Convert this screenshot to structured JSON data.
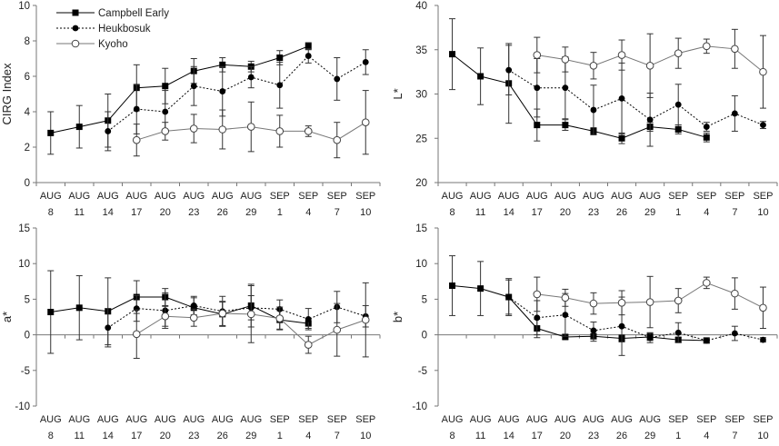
{
  "legend": {
    "entries": [
      {
        "label": "Campbell Early",
        "series": "campbell"
      },
      {
        "label": "Heukbosuk",
        "series": "heukbosuk"
      },
      {
        "label": "Kyoho",
        "series": "kyoho"
      }
    ]
  },
  "chart_data": [
    {
      "type": "line",
      "panel": "top-left",
      "ylabel": "CIRG Index",
      "ylim": [
        0,
        10
      ],
      "yticks": [
        0,
        2,
        4,
        6,
        8,
        10
      ],
      "months": [
        "AUG",
        "AUG",
        "AUG",
        "AUG",
        "AUG",
        "AUG",
        "AUG",
        "AUG",
        "SEP",
        "SEP",
        "SEP",
        "SEP"
      ],
      "days": [
        "8",
        "11",
        "14",
        "17",
        "20",
        "23",
        "26",
        "29",
        "1",
        "4",
        "7",
        "10"
      ],
      "legend_position": "top-left",
      "series": [
        {
          "name": "Campbell Early",
          "values": [
            2.8,
            3.15,
            3.5,
            5.35,
            5.45,
            6.3,
            6.65,
            6.55,
            7.05,
            7.7,
            null,
            null
          ],
          "errors": [
            1.2,
            1.2,
            1.5,
            1.3,
            1.0,
            0.7,
            0.4,
            0.3,
            0.4,
            0.2,
            null,
            null
          ]
        },
        {
          "name": "Heukbosuk",
          "values": [
            null,
            null,
            2.9,
            4.15,
            4.0,
            5.45,
            5.15,
            5.95,
            5.5,
            7.15,
            5.85,
            6.8
          ],
          "errors": [
            null,
            null,
            1.1,
            1.4,
            1.2,
            1.1,
            1.4,
            0.6,
            1.3,
            0.4,
            1.2,
            0.7
          ]
        },
        {
          "name": "Kyoho",
          "values": [
            null,
            null,
            null,
            2.4,
            2.9,
            3.05,
            3.0,
            3.15,
            2.9,
            2.9,
            2.4,
            3.4
          ],
          "errors": [
            null,
            null,
            null,
            0.9,
            0.5,
            0.8,
            1.1,
            1.4,
            0.9,
            0.3,
            1.0,
            1.8
          ]
        }
      ]
    },
    {
      "type": "line",
      "panel": "top-right",
      "ylabel": "L*",
      "ylim": [
        20,
        40
      ],
      "yticks": [
        20,
        25,
        30,
        35,
        40
      ],
      "months": [
        "AUG",
        "AUG",
        "AUG",
        "AUG",
        "AUG",
        "AUG",
        "AUG",
        "AUG",
        "SEP",
        "SEP",
        "SEP",
        "SEP"
      ],
      "days": [
        "8",
        "11",
        "14",
        "17",
        "20",
        "23",
        "26",
        "29",
        "1",
        "4",
        "7",
        "10"
      ],
      "series": [
        {
          "name": "Campbell Early",
          "values": [
            34.5,
            32.0,
            31.2,
            26.5,
            26.5,
            25.8,
            25.0,
            26.3,
            26.0,
            25.1,
            null,
            null
          ],
          "errors": [
            4.0,
            3.2,
            4.5,
            1.8,
            0.6,
            0.4,
            0.6,
            0.5,
            0.5,
            0.5,
            null,
            null
          ]
        },
        {
          "name": "Heukbosuk",
          "values": [
            null,
            null,
            32.7,
            30.7,
            30.7,
            28.2,
            29.5,
            27.1,
            28.8,
            26.3,
            27.8,
            26.5
          ],
          "errors": [
            null,
            null,
            2.8,
            3.3,
            3.5,
            2.8,
            4.0,
            3.0,
            2.3,
            0.5,
            2.0,
            0.4
          ]
        },
        {
          "name": "Kyoho",
          "values": [
            null,
            null,
            null,
            34.4,
            33.9,
            33.2,
            34.4,
            33.2,
            34.6,
            35.4,
            35.1,
            32.5
          ],
          "errors": [
            null,
            null,
            null,
            2.0,
            1.4,
            1.5,
            1.7,
            3.6,
            1.7,
            0.8,
            2.2,
            4.1
          ]
        }
      ]
    },
    {
      "type": "line",
      "panel": "bottom-left",
      "ylabel": "a*",
      "ylim": [
        -10,
        15
      ],
      "yticks": [
        -10,
        -5,
        0,
        5,
        10,
        15
      ],
      "months": [
        "AUG",
        "AUG",
        "AUG",
        "AUG",
        "AUG",
        "AUG",
        "AUG",
        "AUG",
        "SEP",
        "SEP",
        "SEP",
        "SEP"
      ],
      "days": [
        "8",
        "11",
        "14",
        "17",
        "20",
        "23",
        "26",
        "29",
        "1",
        "4",
        "7",
        "10"
      ],
      "series": [
        {
          "name": "Campbell Early",
          "values": [
            3.2,
            3.8,
            3.3,
            5.3,
            5.3,
            3.8,
            2.9,
            4.1,
            2.1,
            1.6,
            null,
            null
          ],
          "errors": [
            5.8,
            4.5,
            4.7,
            2.3,
            1.2,
            1.4,
            1.7,
            3.0,
            1.3,
            0.7,
            null,
            null
          ]
        },
        {
          "name": "Heukbosuk",
          "values": [
            null,
            null,
            1.0,
            3.7,
            3.4,
            4.1,
            3.3,
            3.8,
            3.6,
            2.2,
            3.9,
            2.6
          ],
          "errors": [
            null,
            null,
            2.7,
            1.8,
            2.5,
            1.3,
            2.1,
            1.7,
            1.3,
            1.5,
            2.2,
            1.5
          ]
        },
        {
          "name": "Kyoho",
          "values": [
            null,
            null,
            null,
            0.1,
            2.6,
            2.4,
            3.0,
            2.9,
            2.3,
            -1.4,
            0.7,
            2.1
          ],
          "errors": [
            null,
            null,
            null,
            3.4,
            1.4,
            1.2,
            1.7,
            4.0,
            1.6,
            1.2,
            3.7,
            5.2
          ]
        }
      ]
    },
    {
      "type": "line",
      "panel": "bottom-right",
      "ylabel": "b*",
      "ylim": [
        -10,
        15
      ],
      "yticks": [
        -10,
        -5,
        0,
        5,
        10,
        15
      ],
      "months": [
        "AUG",
        "AUG",
        "AUG",
        "AUG",
        "AUG",
        "AUG",
        "AUG",
        "AUG",
        "SEP",
        "SEP",
        "SEP",
        "SEP"
      ],
      "days": [
        "8",
        "11",
        "14",
        "17",
        "20",
        "23",
        "26",
        "29",
        "1",
        "4",
        "7",
        "10"
      ],
      "series": [
        {
          "name": "Campbell Early",
          "values": [
            6.9,
            6.5,
            5.3,
            0.9,
            -0.3,
            -0.2,
            -0.5,
            -0.3,
            -0.7,
            -0.8,
            null,
            null
          ],
          "errors": [
            4.2,
            3.8,
            2.6,
            1.3,
            0.3,
            0.7,
            0.5,
            0.5,
            0.3,
            0.3,
            null,
            null
          ]
        },
        {
          "name": "Heukbosuk",
          "values": [
            null,
            null,
            5.3,
            2.4,
            2.8,
            0.6,
            1.2,
            -0.4,
            0.3,
            -0.8,
            0.2,
            -0.7
          ],
          "errors": [
            null,
            null,
            2.4,
            2.4,
            3.0,
            1.2,
            4.1,
            0.7,
            1.4,
            0.3,
            1.0,
            0.3
          ]
        },
        {
          "name": "Kyoho",
          "values": [
            null,
            null,
            null,
            5.7,
            5.2,
            4.4,
            4.5,
            4.6,
            4.8,
            7.3,
            5.8,
            3.8
          ],
          "errors": [
            null,
            null,
            null,
            2.4,
            1.2,
            1.5,
            1.7,
            3.6,
            1.7,
            0.8,
            2.2,
            2.9
          ]
        }
      ]
    }
  ]
}
